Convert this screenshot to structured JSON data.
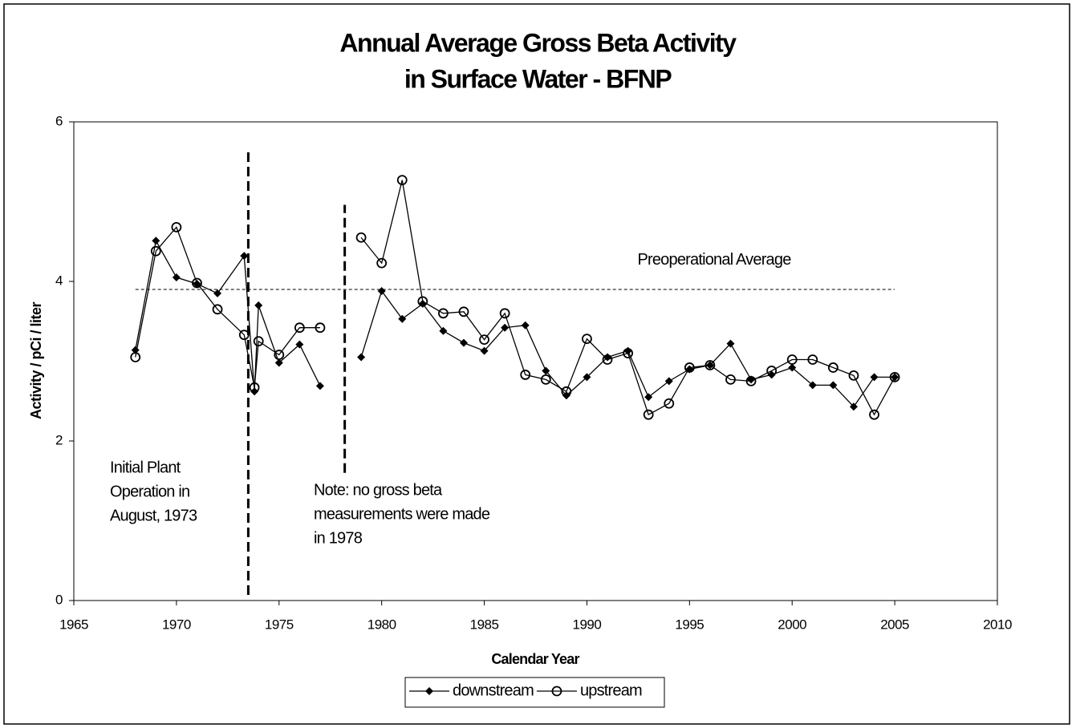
{
  "chart_data": {
    "type": "line",
    "title": [
      "Annual Average Gross Beta Activity",
      "in Surface Water  - BFNP"
    ],
    "x_label": "Calendar Year",
    "y_label": "Activity  /  pCi / liter",
    "x": [
      1968,
      1969,
      1970,
      1971,
      1972,
      1973.3,
      1973.8,
      1974,
      1975,
      1976,
      1977,
      1978,
      1979,
      1980,
      1981,
      1982,
      1983,
      1984,
      1985,
      1986,
      1987,
      1988,
      1989,
      1990,
      1991,
      1992,
      1993,
      1994,
      1995,
      1996,
      1997,
      1998,
      1999,
      2000,
      2001,
      2002,
      2003,
      2004,
      2005
    ],
    "series": [
      {
        "name": "downstream",
        "color": "#000000",
        "marker": "diamond",
        "values": [
          3.14,
          4.51,
          4.05,
          3.97,
          3.85,
          4.32,
          2.62,
          3.7,
          2.98,
          3.21,
          2.69,
          null,
          3.05,
          3.88,
          3.53,
          3.72,
          3.38,
          3.23,
          3.13,
          3.42,
          3.45,
          2.88,
          2.57,
          2.8,
          3.05,
          3.13,
          2.55,
          2.75,
          2.9,
          2.95,
          3.22,
          2.77,
          2.83,
          2.92,
          2.7,
          2.7,
          2.43,
          2.8,
          2.8
        ]
      },
      {
        "name": "upstream",
        "color": "#000000",
        "marker": "circle",
        "values": [
          3.05,
          4.38,
          4.68,
          3.98,
          3.65,
          3.33,
          2.67,
          3.25,
          3.08,
          3.42,
          3.42,
          null,
          4.55,
          4.23,
          5.27,
          3.75,
          3.6,
          3.62,
          3.27,
          3.6,
          2.83,
          2.77,
          2.62,
          3.28,
          3.02,
          3.1,
          2.33,
          2.47,
          2.92,
          2.95,
          2.77,
          2.75,
          2.88,
          3.02,
          3.02,
          2.92,
          2.82,
          2.33,
          2.8
        ]
      }
    ],
    "reference_line": {
      "label": "Preoperational Average",
      "value": 3.9,
      "x": [
        1968,
        2005
      ]
    },
    "vlines": [
      {
        "x": 1973.5,
        "ylim": [
          0.07,
          5.64
        ]
      },
      {
        "x": 1978.2,
        "ylim": [
          1.6,
          4.96
        ]
      }
    ],
    "annotations": [
      {
        "lines": [
          "Initial Plant",
          "Operation in",
          "August, 1973"
        ]
      },
      {
        "lines": [
          "Note: no gross beta",
          "measurements were made",
          "in 1978"
        ]
      }
    ],
    "xlim": [
      1965,
      2010
    ],
    "xticks": [
      1965,
      1970,
      1975,
      1980,
      1985,
      1990,
      1995,
      2000,
      2005,
      2010
    ],
    "ylim": [
      0,
      6
    ],
    "yticks": [
      0,
      2,
      4,
      6
    ],
    "grid": false,
    "legend": "bottom"
  }
}
